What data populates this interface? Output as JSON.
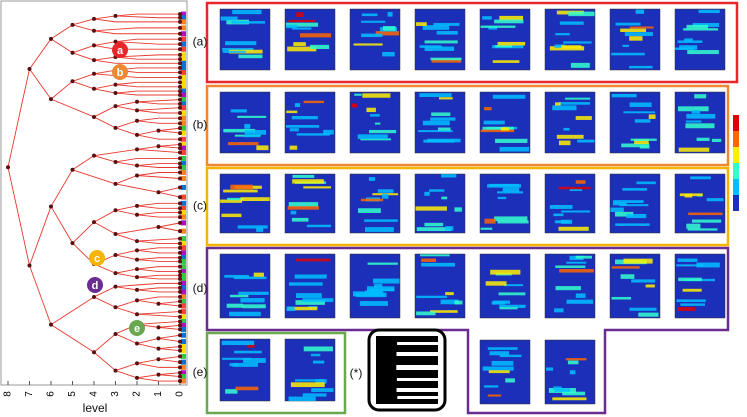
{
  "dendrogram": {
    "axis_label": "level",
    "ticks": [
      "8",
      "7",
      "6",
      "5",
      "4",
      "3",
      "2",
      "1",
      "0"
    ],
    "node_labels": [
      "a",
      "b",
      "c",
      "d",
      "e"
    ]
  },
  "groups": [
    {
      "label": "(a)"
    },
    {
      "label": "(b)"
    },
    {
      "label": "(c)"
    },
    {
      "label": "(d)"
    },
    {
      "label": "(e)"
    }
  ],
  "reference_label": "(*)"
}
